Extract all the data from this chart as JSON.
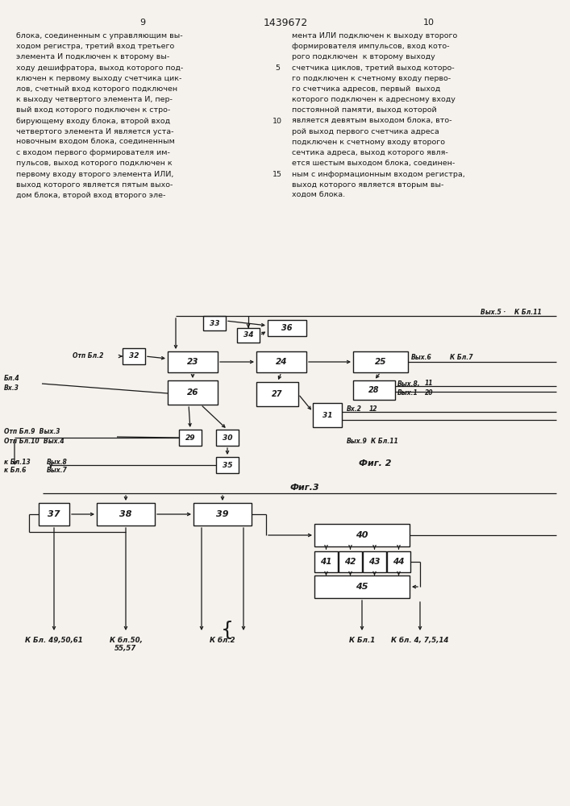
{
  "page_numbers": [
    "9",
    "10"
  ],
  "patent_number": "1439672",
  "text_left": "блока, соединенным с управляющим вы-\nходом регистра, третий вход третьего\nэлемента И подключен к второму вы-\nходу дешифратора, выход которого под-\nключен к первому выходу счетчика цик-\nлов, счетный вход которого подключен\nк выходу четвертого элемента И, пер-\nвый вход которого подключен к стро-\nбирующему входу блока, второй вход\nчетвертого элемента И является уста-\nновочным входом блока, соединенным\nс входом первого формирователя им-\nпульсов, выход которого подключен к\nпервому входу второго элемента ИЛИ,\nвыход которого является пятым выхо-\nдом блока, второй вход второго эле-",
  "text_right": "мента ИЛИ подключен к выходу второго\nформирователя импульсов, вход кото-\nрого подключен  к второму выходу\nсчетчика циклов, третий выход которо-\nго подключен к счетному входу перво-\nго счетчика адресов, первый  выход\nкоторого подключен к адресному входу\nпостоянной памяти, выход которой\nявляется девятым выходом блока, вто-\nрой выход первого счетчика адреса\nподключен к счетному входу второго\nсечтика адреса, выход которого явля-\nется шестым выходом блока, соединен-\nным с информационным входом регистра,\nвыход которого является вторым вы-\nходом блока.",
  "background_color": "#f5f2ed"
}
